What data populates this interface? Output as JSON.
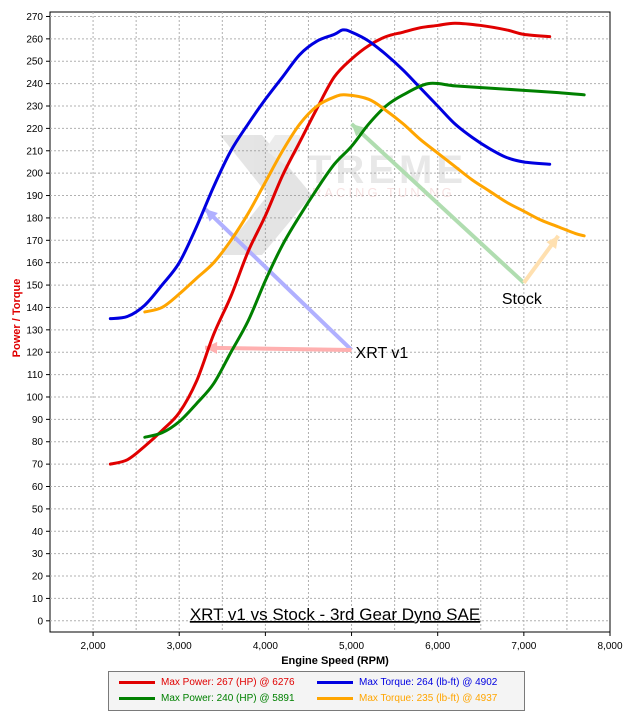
{
  "chart_data": {
    "type": "line",
    "title": "XRT v1 vs Stock - 3rd Gear Dyno SAE",
    "xlabel": "Engine Speed (RPM)",
    "ylabel": "Power / Torque",
    "xlim": [
      1500,
      8000
    ],
    "ylim": [
      -5,
      272
    ],
    "x_ticks": [
      "2,000",
      "3,000",
      "4,000",
      "5,000",
      "6,000",
      "7,000",
      "8,000"
    ],
    "y_ticks": [
      0,
      10,
      20,
      30,
      40,
      50,
      60,
      70,
      80,
      90,
      100,
      110,
      120,
      130,
      140,
      150,
      160,
      170,
      180,
      190,
      200,
      210,
      220,
      230,
      240,
      250,
      260,
      270
    ],
    "grid": true,
    "series": [
      {
        "name": "Max Power: 267 (HP) @ 6276",
        "color": "#e00000",
        "points": [
          [
            2200,
            70
          ],
          [
            2400,
            72
          ],
          [
            2600,
            78
          ],
          [
            2800,
            85
          ],
          [
            3000,
            93
          ],
          [
            3200,
            107
          ],
          [
            3400,
            128
          ],
          [
            3600,
            145
          ],
          [
            3800,
            165
          ],
          [
            4000,
            181
          ],
          [
            4200,
            199
          ],
          [
            4400,
            214
          ],
          [
            4600,
            229
          ],
          [
            4800,
            243
          ],
          [
            5000,
            251
          ],
          [
            5200,
            257
          ],
          [
            5400,
            261
          ],
          [
            5600,
            263
          ],
          [
            5800,
            265
          ],
          [
            6000,
            266
          ],
          [
            6200,
            267
          ],
          [
            6500,
            266
          ],
          [
            6800,
            264
          ],
          [
            7000,
            262
          ],
          [
            7300,
            261
          ]
        ]
      },
      {
        "name": "Max Torque: 264 (lb-ft) @ 4902",
        "color": "#0000e0",
        "points": [
          [
            2200,
            135
          ],
          [
            2400,
            136
          ],
          [
            2600,
            141
          ],
          [
            2800,
            150
          ],
          [
            3000,
            160
          ],
          [
            3200,
            176
          ],
          [
            3400,
            194
          ],
          [
            3600,
            210
          ],
          [
            3800,
            222
          ],
          [
            4000,
            233
          ],
          [
            4200,
            243
          ],
          [
            4400,
            253
          ],
          [
            4600,
            259
          ],
          [
            4800,
            262
          ],
          [
            4900,
            264
          ],
          [
            5000,
            263
          ],
          [
            5200,
            259
          ],
          [
            5400,
            253
          ],
          [
            5600,
            246
          ],
          [
            5800,
            238
          ],
          [
            6000,
            230
          ],
          [
            6200,
            222
          ],
          [
            6400,
            216
          ],
          [
            6600,
            211
          ],
          [
            6800,
            207
          ],
          [
            7000,
            205
          ],
          [
            7300,
            204
          ]
        ]
      },
      {
        "name": "Max Power: 240 (HP) @ 5891",
        "color": "#008000",
        "points": [
          [
            2600,
            82
          ],
          [
            2800,
            84
          ],
          [
            3000,
            89
          ],
          [
            3200,
            97
          ],
          [
            3400,
            106
          ],
          [
            3600,
            120
          ],
          [
            3800,
            134
          ],
          [
            4000,
            152
          ],
          [
            4200,
            168
          ],
          [
            4400,
            181
          ],
          [
            4600,
            193
          ],
          [
            4800,
            204
          ],
          [
            5000,
            212
          ],
          [
            5200,
            222
          ],
          [
            5400,
            230
          ],
          [
            5600,
            235
          ],
          [
            5891,
            240
          ],
          [
            6200,
            239
          ],
          [
            6600,
            238
          ],
          [
            7000,
            237
          ],
          [
            7400,
            236
          ],
          [
            7700,
            235
          ]
        ]
      },
      {
        "name": "Max Torque: 235 (lb-ft) @ 4937",
        "color": "#ffa500",
        "points": [
          [
            2600,
            138
          ],
          [
            2800,
            140
          ],
          [
            3000,
            146
          ],
          [
            3200,
            153
          ],
          [
            3400,
            160
          ],
          [
            3600,
            170
          ],
          [
            3800,
            182
          ],
          [
            4000,
            196
          ],
          [
            4200,
            210
          ],
          [
            4400,
            222
          ],
          [
            4600,
            230
          ],
          [
            4800,
            234
          ],
          [
            4937,
            235
          ],
          [
            5200,
            233
          ],
          [
            5400,
            228
          ],
          [
            5600,
            222
          ],
          [
            5800,
            215
          ],
          [
            6000,
            209
          ],
          [
            6200,
            203
          ],
          [
            6400,
            197
          ],
          [
            6600,
            192
          ],
          [
            6800,
            187
          ],
          [
            7000,
            183
          ],
          [
            7200,
            179
          ],
          [
            7400,
            176
          ],
          [
            7600,
            173
          ],
          [
            7700,
            172
          ]
        ]
      }
    ],
    "annotations": [
      {
        "text": "XRT v1",
        "x": 5000,
        "y": 121,
        "arrow_targets": [
          [
            3300,
            184
          ],
          [
            3300,
            122
          ]
        ],
        "arrow_colors": [
          "#b0b0ff",
          "#ffb0b0"
        ]
      },
      {
        "text": "Stock",
        "x": 7000,
        "y": 151,
        "arrow_targets": [
          [
            5000,
            222
          ],
          [
            7400,
            172
          ]
        ],
        "arrow_colors": [
          "#b0ddb0",
          "#ffe0b0"
        ]
      }
    ],
    "watermark": "XTREME RACING TUNING"
  }
}
